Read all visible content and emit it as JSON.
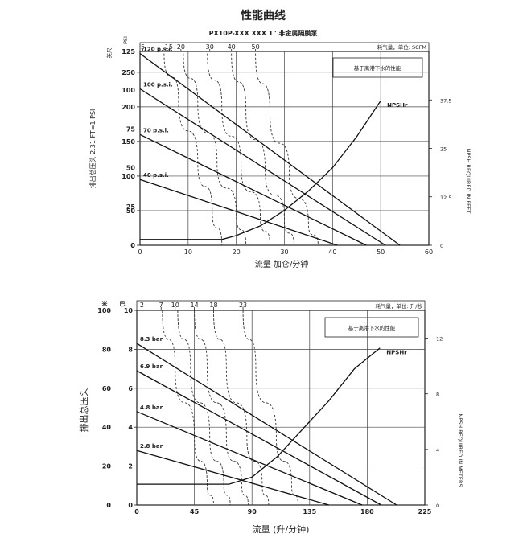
{
  "page_title": "性能曲线",
  "chart_data": [
    {
      "type": "line",
      "title": "PX10P-XXX XXX 1\" 非金属隔膜泵",
      "note": "基于离港下水的性能",
      "air_label": "耗气量，单位: SCFM",
      "xlabel": "流量 加仑/分钟",
      "ylabel_left": "排出总压头 2.31 FT=1 PSI",
      "ylabel_left_unit_a": "英尺",
      "ylabel_left_unit_b": "PSI",
      "ylabel_right": "NPSH REQUIRED IN FEET",
      "xlim": [
        0,
        60
      ],
      "ylim": [
        0,
        280
      ],
      "ylim_psi": [
        0,
        125
      ],
      "ylim_right": [
        0,
        50
      ],
      "x_ticks": [
        "0",
        "10",
        "20",
        "30",
        "40",
        "50",
        "60"
      ],
      "y_ticks": [
        "0",
        "50",
        "100",
        "150",
        "200",
        "250"
      ],
      "y_ticks_psi": [
        "0",
        "25",
        "50",
        "75",
        "100",
        "125"
      ],
      "y_ticks_right": [
        "0",
        "12.5",
        "25",
        "37.5"
      ],
      "air_ticks": [
        {
          "label": "5",
          "x": 0.6
        },
        {
          "label": "15",
          "x": 6
        },
        {
          "label": "20",
          "x": 8.5
        },
        {
          "label": "30",
          "x": 14.5
        },
        {
          "label": "40",
          "x": 19
        },
        {
          "label": "50",
          "x": 24
        }
      ],
      "series": [
        {
          "name": "120 p.s.i.",
          "x": [
            0,
            54
          ],
          "y": [
            277,
            0
          ]
        },
        {
          "name": "100 p.s.i.",
          "x": [
            0,
            51
          ],
          "y": [
            226,
            0
          ]
        },
        {
          "name": "70 p.s.i.",
          "x": [
            0,
            47
          ],
          "y": [
            160,
            0
          ]
        },
        {
          "name": "40 p.s.i.",
          "x": [
            0,
            41
          ],
          "y": [
            95,
            0
          ]
        },
        {
          "name": "NPSHr",
          "x": [
            0,
            17,
            20,
            25,
            30,
            35,
            40,
            45,
            50
          ],
          "y": [
            1.5,
            1.5,
            2.5,
            5,
            9,
            14,
            20,
            28,
            37.3
          ],
          "axis": "right"
        }
      ],
      "air_curves": [
        {
          "x": [
            5,
            8,
            12,
            15,
            17
          ],
          "y": [
            277,
            210,
            120,
            50,
            0
          ]
        },
        {
          "x": [
            9,
            12,
            16,
            20,
            22
          ],
          "y": [
            277,
            205,
            120,
            45,
            0
          ]
        },
        {
          "x": [
            14,
            17,
            21,
            25,
            27
          ],
          "y": [
            277,
            200,
            115,
            40,
            0
          ]
        },
        {
          "x": [
            19,
            22,
            26,
            30,
            32
          ],
          "y": [
            277,
            195,
            110,
            35,
            0
          ]
        },
        {
          "x": [
            24,
            27,
            31,
            35,
            37
          ],
          "y": [
            277,
            190,
            105,
            30,
            0
          ]
        }
      ]
    },
    {
      "type": "line",
      "note": "基于离港下水的性能",
      "air_label": "耗气量，单位: 升/秒",
      "xlabel": "流量 (升/分钟)",
      "ylabel_left": "排出总压头",
      "ylabel_left_unit_a": "米",
      "ylabel_left_unit_b": "巴",
      "ylabel_right": "NPSH REQUIRED IN METERS",
      "xlim": [
        0,
        225
      ],
      "ylim": [
        0,
        100
      ],
      "ylim_bar": [
        0,
        10
      ],
      "ylim_right": [
        0,
        14
      ],
      "x_ticks": [
        "0",
        "45",
        "90",
        "135",
        "180",
        "225"
      ],
      "y_ticks": [
        "0",
        "20",
        "40",
        "60",
        "80",
        "100"
      ],
      "y_ticks_bar": [
        "0",
        "2",
        "4",
        "6",
        "8",
        "10"
      ],
      "y_ticks_right": [
        "0",
        "4",
        "8",
        "12"
      ],
      "air_ticks": [
        {
          "label": "2",
          "x": 4
        },
        {
          "label": "7",
          "x": 19
        },
        {
          "label": "10",
          "x": 30
        },
        {
          "label": "14",
          "x": 45
        },
        {
          "label": "18",
          "x": 60
        },
        {
          "label": "23",
          "x": 83
        }
      ],
      "series": [
        {
          "name": "8.3 bar",
          "x": [
            0,
            203
          ],
          "y": [
            83,
            0
          ]
        },
        {
          "name": "6.9 bar",
          "x": [
            0,
            191
          ],
          "y": [
            69,
            0
          ]
        },
        {
          "name": "4.8 bar",
          "x": [
            0,
            176
          ],
          "y": [
            48,
            0
          ]
        },
        {
          "name": "2.8 bar",
          "x": [
            0,
            150
          ],
          "y": [
            28,
            0
          ]
        },
        {
          "name": "NPSHr",
          "x": [
            0,
            72,
            90,
            110,
            130,
            150,
            170,
            190
          ],
          "y": [
            1.5,
            1.5,
            2,
            3.5,
            5.5,
            7.5,
            9.8,
            11.3
          ],
          "axis": "right"
        }
      ],
      "air_curves": [
        {
          "x": [
            20,
            30,
            45,
            55,
            60
          ],
          "y": [
            100,
            70,
            35,
            10,
            0
          ]
        },
        {
          "x": [
            32,
            42,
            57,
            68,
            73
          ],
          "y": [
            100,
            70,
            35,
            10,
            0
          ]
        },
        {
          "x": [
            45,
            55,
            70,
            82,
            87
          ],
          "y": [
            100,
            70,
            35,
            10,
            0
          ]
        },
        {
          "x": [
            60,
            70,
            86,
            98,
            103
          ],
          "y": [
            100,
            70,
            35,
            10,
            0
          ]
        },
        {
          "x": [
            83,
            93,
            109,
            121,
            126
          ],
          "y": [
            100,
            70,
            35,
            10,
            0
          ]
        }
      ]
    }
  ]
}
